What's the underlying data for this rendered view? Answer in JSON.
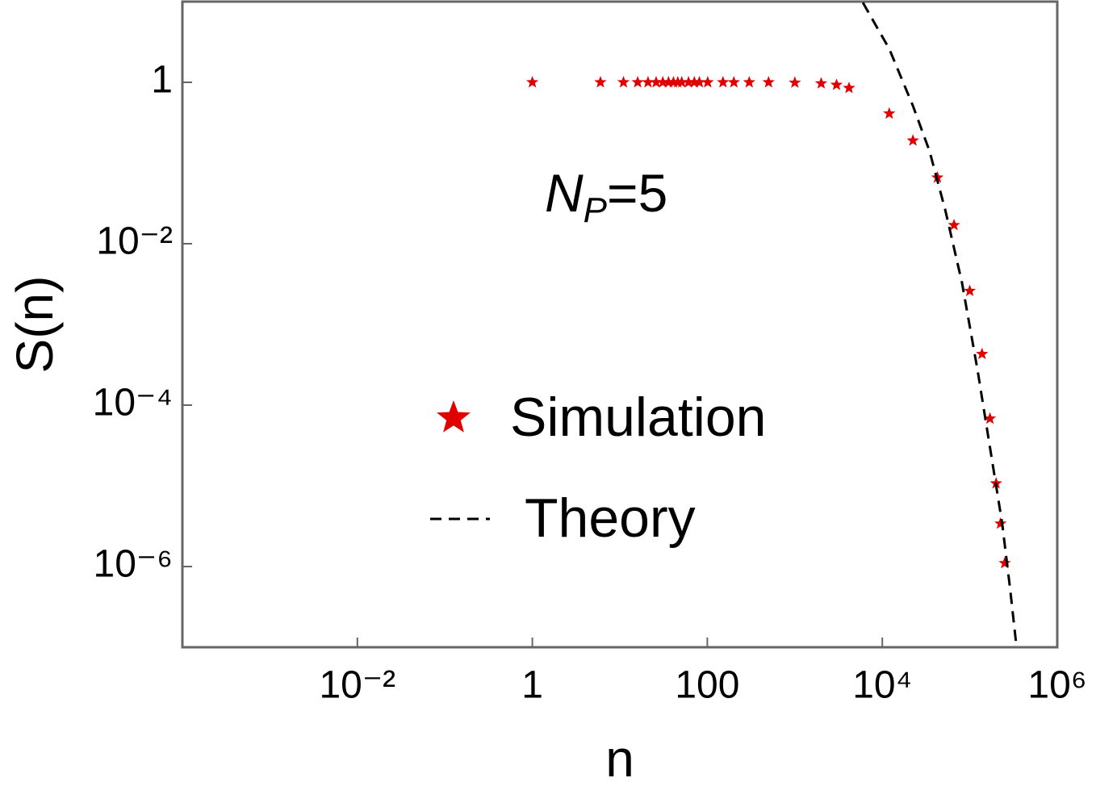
{
  "chart_data": {
    "type": "scatter-line",
    "x_label": "n",
    "y_label": "S(n)",
    "annotation": {
      "symbol": "N",
      "subscript": "P",
      "text": "=5"
    },
    "xscale": "log",
    "yscale": "log",
    "xlim": [
      0.0001,
      1000000
    ],
    "ylim": [
      1e-07,
      10
    ],
    "xticks": [
      {
        "value": 0.01,
        "label": "10⁻²"
      },
      1,
      100,
      {
        "value": 10000,
        "label": "10⁴"
      },
      {
        "value": 1000000,
        "label": "10⁶"
      }
    ],
    "yticks": [
      1,
      {
        "value": 0.01,
        "label": "10⁻²"
      },
      {
        "value": 0.0001,
        "label": "10⁻⁴"
      },
      {
        "value": 1e-06,
        "label": "10⁻⁶"
      }
    ],
    "legend": "center",
    "series": [
      {
        "name": "Simulation",
        "color": "#e00000",
        "marker": "star",
        "x": [
          1,
          6,
          11,
          16,
          21,
          26,
          31,
          36,
          41,
          46,
          51,
          61,
          71,
          81,
          101,
          151,
          201,
          301,
          501,
          1001,
          2001,
          3001,
          4170,
          12000,
          22400,
          42700,
          66100,
          100000,
          138000,
          170000,
          200000,
          224000,
          251000
        ],
        "y": [
          1,
          1,
          1,
          1,
          1,
          1,
          1,
          1,
          1,
          1,
          1,
          1,
          1,
          1,
          1,
          1,
          1,
          1,
          1,
          0.99,
          0.97,
          0.93,
          0.85,
          0.41,
          0.19,
          0.066,
          0.017,
          0.0026,
          0.00043,
          6.8e-05,
          1.07e-05,
          3.4e-06,
          1.1e-06
        ]
      },
      {
        "name": "Theory",
        "color": "#000000",
        "dashed": true,
        "x": [
          6000,
          12000,
          22400,
          34700,
          52500,
          81300,
          123000,
          170000,
          234000,
          288000,
          339000
        ],
        "y": [
          9.7,
          2.6,
          0.51,
          0.14,
          0.026,
          0.0033,
          0.00027,
          3e-05,
          3.5e-06,
          5.5e-07,
          1.1e-07
        ]
      }
    ]
  }
}
